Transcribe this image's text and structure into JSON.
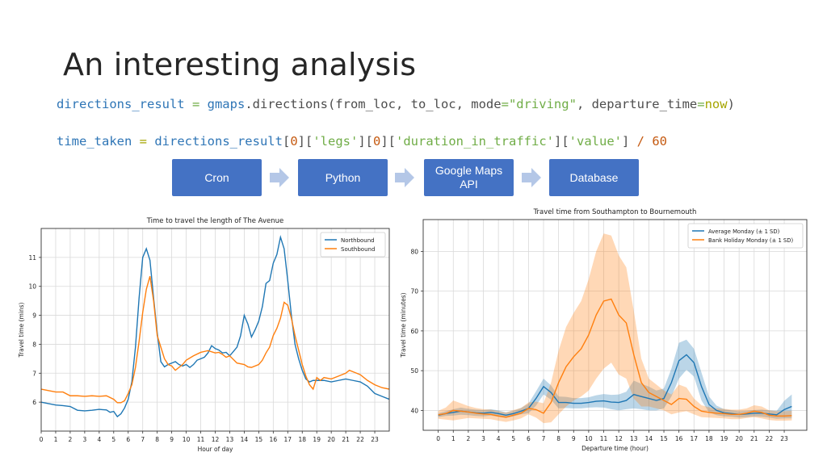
{
  "slide": {
    "title": "An interesting analysis",
    "code_line1": {
      "var": "directions_result",
      "eq": " = ",
      "mod": "gmaps",
      "rest1": ".directions(from_loc, to_loc, mode",
      "eq2": "=",
      "str": "\"driving\"",
      "rest2": ", departure_time",
      "eq3": "=",
      "kw": "now",
      "close": ")"
    },
    "code_line2": {
      "var": "time_taken",
      "eq": " = ",
      "obj": "directions_result",
      "b1": "[",
      "n1": "0",
      "b2": "][",
      "s1": "'legs'",
      "b3": "][",
      "n2": "0",
      "b4": "][",
      "s2": "'duration_in_traffic'",
      "b5": "][",
      "s3": "'value'",
      "b6": "]",
      "div": " / ",
      "n3": "60"
    },
    "flow": [
      "Cron",
      "Python",
      "Google Maps API",
      "Database"
    ],
    "colors": {
      "box": "#4472c4",
      "arrow": "#b4c7e7",
      "blue": "#1f77b4",
      "orange": "#ff7f0e"
    }
  },
  "chart_data": [
    {
      "type": "line",
      "title": "Time to travel the length of The Avenue",
      "xlabel": "Hour of day",
      "ylabel": "Travel time (mins)",
      "xlim": [
        0,
        24
      ],
      "ylim": [
        5.0,
        12.0
      ],
      "xticks": [
        "0",
        "1",
        "2",
        "3",
        "4",
        "5",
        "6",
        "7",
        "8",
        "9",
        "10",
        "11",
        "12",
        "13",
        "14",
        "15",
        "16",
        "17",
        "18",
        "19",
        "20",
        "21",
        "22",
        "23"
      ],
      "yticks": [
        "6",
        "7",
        "8",
        "9",
        "10",
        "11"
      ],
      "grid": true,
      "legend": "top-right",
      "series": [
        {
          "name": "Northbound",
          "color": "#1f77b4",
          "x": [
            0,
            0.5,
            1,
            1.5,
            2,
            2.5,
            3,
            3.5,
            4,
            4.5,
            4.75,
            5,
            5.25,
            5.5,
            5.75,
            6,
            6.25,
            6.5,
            6.75,
            7,
            7.25,
            7.5,
            7.75,
            8,
            8.25,
            8.5,
            8.75,
            9,
            9.25,
            9.5,
            9.75,
            10,
            10.25,
            10.5,
            10.75,
            11,
            11.25,
            11.5,
            11.75,
            12,
            12.25,
            12.5,
            12.75,
            13,
            13.25,
            13.5,
            13.75,
            14,
            14.25,
            14.5,
            14.75,
            15,
            15.25,
            15.5,
            15.75,
            16,
            16.25,
            16.5,
            16.75,
            17,
            17.25,
            17.5,
            17.75,
            18,
            18.25,
            18.5,
            18.75,
            19,
            19.5,
            20,
            20.5,
            21,
            21.5,
            22,
            22.5,
            23,
            23.5,
            24
          ],
          "y": [
            6.0,
            5.95,
            5.9,
            5.88,
            5.85,
            5.72,
            5.7,
            5.72,
            5.75,
            5.73,
            5.65,
            5.68,
            5.5,
            5.6,
            5.8,
            6.1,
            6.7,
            7.9,
            9.6,
            11.0,
            11.3,
            10.9,
            9.6,
            8.4,
            7.4,
            7.22,
            7.3,
            7.35,
            7.4,
            7.3,
            7.25,
            7.3,
            7.2,
            7.3,
            7.45,
            7.5,
            7.55,
            7.7,
            7.95,
            7.85,
            7.8,
            7.7,
            7.72,
            7.6,
            7.75,
            7.9,
            8.3,
            9.0,
            8.7,
            8.25,
            8.5,
            8.8,
            9.3,
            10.1,
            10.2,
            10.8,
            11.1,
            11.7,
            11.3,
            10.2,
            9.0,
            8.0,
            7.5,
            7.1,
            6.8,
            6.7,
            6.75,
            6.75,
            6.75,
            6.7,
            6.75,
            6.8,
            6.75,
            6.7,
            6.55,
            6.3,
            6.2,
            6.1
          ]
        },
        {
          "name": "Southbound",
          "color": "#ff7f0e",
          "x": [
            0,
            0.5,
            1,
            1.5,
            2,
            2.5,
            3,
            3.5,
            4,
            4.5,
            5,
            5.25,
            5.5,
            5.75,
            6,
            6.25,
            6.5,
            6.75,
            7,
            7.25,
            7.5,
            7.75,
            8,
            8.25,
            8.5,
            8.75,
            9,
            9.25,
            9.5,
            9.75,
            10,
            10.5,
            11,
            11.5,
            12,
            12.25,
            12.5,
            12.75,
            13,
            13.5,
            14,
            14.25,
            14.5,
            15,
            15.25,
            15.5,
            15.75,
            16,
            16.25,
            16.5,
            16.75,
            17,
            17.25,
            17.5,
            17.75,
            18,
            18.25,
            18.5,
            18.75,
            19,
            19.25,
            19.5,
            20,
            20.5,
            21,
            21.25,
            21.5,
            22,
            22.5,
            23,
            23.5,
            24
          ],
          "y": [
            6.45,
            6.4,
            6.35,
            6.35,
            6.22,
            6.22,
            6.2,
            6.22,
            6.2,
            6.22,
            6.1,
            5.98,
            5.98,
            6.05,
            6.3,
            6.6,
            7.2,
            8.1,
            9.1,
            9.9,
            10.35,
            9.5,
            8.3,
            7.9,
            7.5,
            7.3,
            7.25,
            7.1,
            7.2,
            7.3,
            7.45,
            7.6,
            7.72,
            7.78,
            7.7,
            7.72,
            7.65,
            7.55,
            7.6,
            7.35,
            7.3,
            7.22,
            7.2,
            7.3,
            7.45,
            7.7,
            7.9,
            8.3,
            8.55,
            8.9,
            9.45,
            9.35,
            8.9,
            8.3,
            7.8,
            7.3,
            6.9,
            6.6,
            6.45,
            6.85,
            6.75,
            6.85,
            6.8,
            6.9,
            7.0,
            7.1,
            7.05,
            6.95,
            6.75,
            6.6,
            6.5,
            6.45
          ]
        }
      ]
    },
    {
      "type": "line",
      "title": "Travel time from Southampton to Bournemouth",
      "xlabel": "Departure time (hour)",
      "ylabel": "Travel time (minutes)",
      "xlim": [
        -1,
        24.5
      ],
      "ylim": [
        35,
        88
      ],
      "xticks": [
        "0",
        "1",
        "2",
        "3",
        "4",
        "5",
        "6",
        "7",
        "8",
        "9",
        "10",
        "11",
        "12",
        "13",
        "14",
        "15",
        "16",
        "17",
        "18",
        "19",
        "20",
        "21",
        "22",
        "23"
      ],
      "yticks": [
        "40",
        "50",
        "60",
        "70",
        "80"
      ],
      "grid": true,
      "legend": "top-right",
      "band": "± 1 SD",
      "series": [
        {
          "name": "Average Monday (± 1 SD)",
          "color": "#1f77b4",
          "x": [
            0,
            0.5,
            1,
            1.5,
            2,
            2.5,
            3,
            3.5,
            4,
            4.5,
            5,
            5.5,
            6,
            6.5,
            7,
            7.5,
            8,
            8.5,
            9,
            9.5,
            10,
            10.5,
            11,
            11.5,
            12,
            12.5,
            13,
            13.5,
            14,
            14.5,
            15,
            15.5,
            16,
            16.5,
            17,
            17.5,
            18,
            18.5,
            19,
            19.5,
            20,
            20.5,
            21,
            21.5,
            22,
            22.5,
            23,
            23.5
          ],
          "y": [
            38.8,
            39.2,
            39.5,
            39.8,
            39.6,
            39.4,
            39.3,
            39.5,
            39.2,
            38.8,
            39.2,
            39.8,
            40.5,
            43.0,
            46.0,
            44.5,
            42.0,
            42.0,
            41.8,
            41.8,
            42.0,
            42.3,
            42.4,
            42.1,
            42.0,
            42.5,
            44.0,
            43.5,
            43.0,
            42.5,
            43.0,
            47.0,
            52.5,
            54.0,
            52.0,
            46.0,
            41.5,
            40.0,
            39.4,
            39.2,
            39.0,
            39.1,
            39.3,
            39.3,
            39.1,
            38.9,
            40.2,
            41.0
          ],
          "sd": [
            0.5,
            0.6,
            0.8,
            0.9,
            0.8,
            0.8,
            0.8,
            0.8,
            0.8,
            0.7,
            0.7,
            0.8,
            1.2,
            1.8,
            2.0,
            1.8,
            1.5,
            1.4,
            1.3,
            1.3,
            1.3,
            1.5,
            1.7,
            1.8,
            2.0,
            2.2,
            3.5,
            3.2,
            3.0,
            2.5,
            2.5,
            3.5,
            4.5,
            3.8,
            3.5,
            3.5,
            2.0,
            1.2,
            0.9,
            0.8,
            0.8,
            0.8,
            0.8,
            0.9,
            0.9,
            1.0,
            2.2,
            3.0
          ]
        },
        {
          "name": "Bank Holiday Monday (± 1 SD)",
          "color": "#ff7f0e",
          "x": [
            0,
            0.5,
            1,
            1.5,
            2,
            2.5,
            3,
            3.5,
            4,
            4.5,
            5,
            5.5,
            6,
            6.5,
            7,
            7.5,
            8,
            8.5,
            9,
            9.5,
            10,
            10.5,
            11,
            11.5,
            12,
            12.5,
            13,
            13.5,
            14,
            14.5,
            15,
            15.5,
            16,
            16.5,
            17,
            17.5,
            18,
            18.5,
            19,
            19.5,
            20,
            20.5,
            21,
            21.5,
            22,
            22.5,
            23,
            23.5
          ],
          "y": [
            38.9,
            39.2,
            40.0,
            39.8,
            39.6,
            39.3,
            39.1,
            39.0,
            38.6,
            38.3,
            38.8,
            39.3,
            40.5,
            40.2,
            39.3,
            42.0,
            47.0,
            51.0,
            53.5,
            55.5,
            59.0,
            64.0,
            67.5,
            68.0,
            64.0,
            62.0,
            54.0,
            47.0,
            44.5,
            43.5,
            42.5,
            41.5,
            43.0,
            42.8,
            41.0,
            39.8,
            39.5,
            39.3,
            39.2,
            39.0,
            39.0,
            39.3,
            39.8,
            39.5,
            38.8,
            38.6,
            38.6,
            38.7
          ],
          "sd": [
            1.0,
            1.5,
            2.5,
            2.0,
            1.5,
            1.3,
            1.2,
            1.2,
            1.2,
            1.2,
            1.3,
            1.3,
            1.5,
            2.0,
            2.5,
            5.0,
            8.0,
            10.0,
            11.0,
            12.0,
            14.0,
            16.0,
            17.0,
            16.0,
            15.0,
            14.0,
            11.0,
            6.0,
            3.5,
            3.0,
            2.5,
            2.5,
            3.5,
            3.0,
            2.0,
            1.5,
            1.3,
            1.2,
            1.2,
            1.2,
            1.2,
            1.2,
            1.5,
            1.5,
            1.2,
            1.2,
            1.2,
            1.2
          ]
        }
      ]
    }
  ]
}
